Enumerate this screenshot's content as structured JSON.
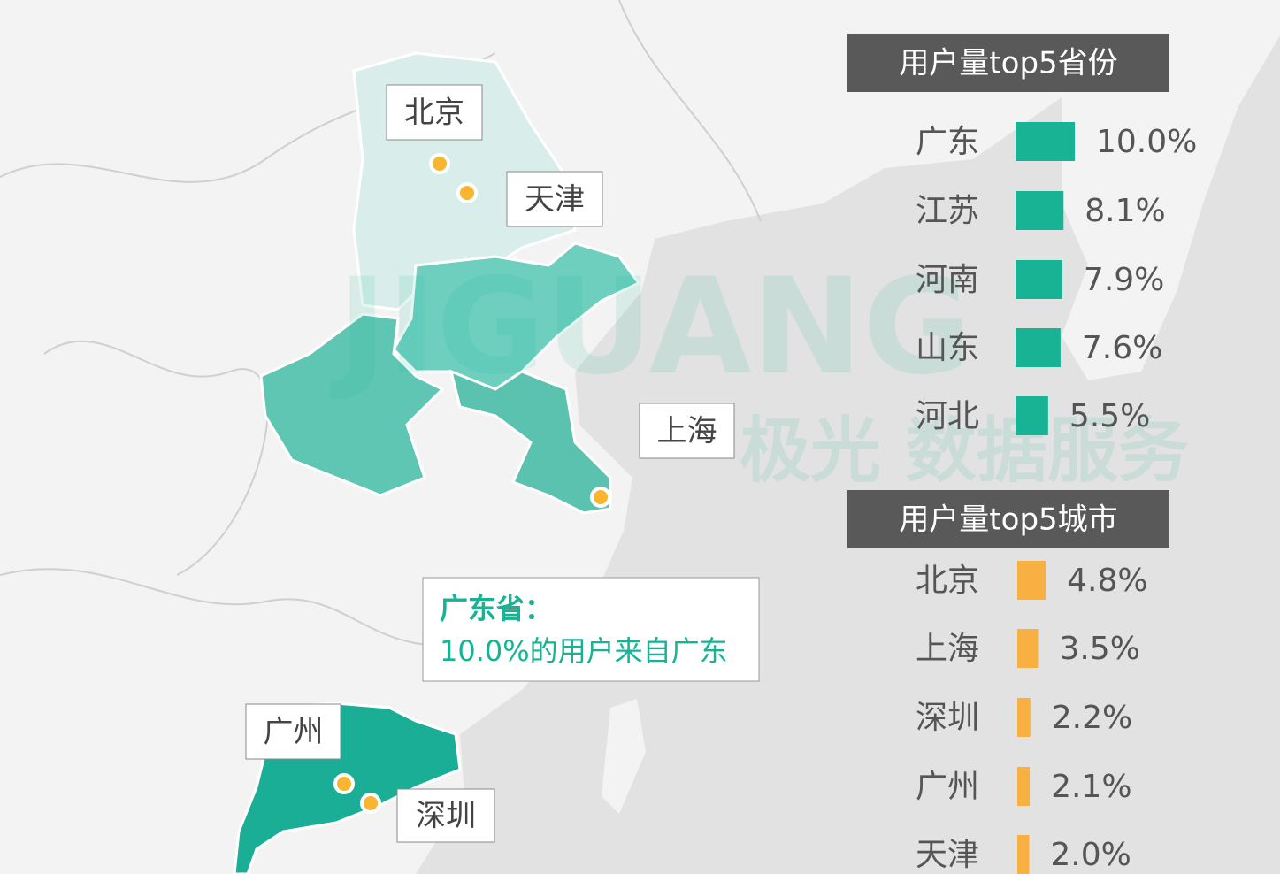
{
  "map_labels": [
    "北京",
    "天津",
    "上海",
    "广州",
    "深圳"
  ],
  "callout": {
    "title": "广东省：",
    "text": "10.0%的用户来自广东"
  },
  "watermark": {
    "brand": "JIGUANG",
    "tagline": "极光  数据服务"
  },
  "chart_data": [
    {
      "type": "bar",
      "orientation": "horizontal",
      "title": "用户量top5省份",
      "categories": [
        "广东",
        "江苏",
        "河南",
        "山东",
        "河北"
      ],
      "values": [
        10.0,
        8.1,
        7.9,
        7.6,
        5.5
      ],
      "value_labels": [
        "10.0%",
        "8.1%",
        "7.9%",
        "7.6%",
        "5.5%"
      ],
      "color": "#17b394"
    },
    {
      "type": "bar",
      "orientation": "horizontal",
      "title": "用户量top5城市",
      "categories": [
        "北京",
        "上海",
        "深圳",
        "广州",
        "天津"
      ],
      "values": [
        4.8,
        3.5,
        2.2,
        2.1,
        2.0
      ],
      "value_labels": [
        "4.8%",
        "3.5%",
        "2.2%",
        "2.1%",
        "2.0%"
      ],
      "color": "#f7b041"
    }
  ]
}
